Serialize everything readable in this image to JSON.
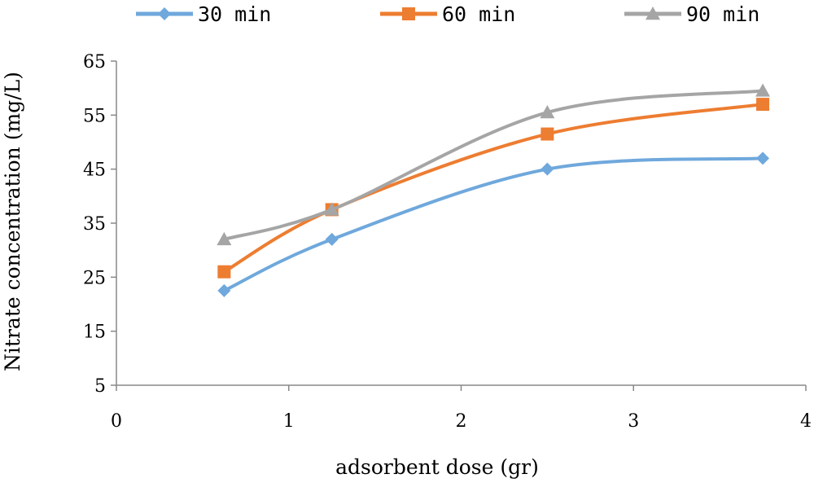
{
  "chart_data": {
    "type": "scatter",
    "title": "",
    "xlabel": "adsorbent dose (gr)",
    "ylabel": "Nitrate concentration (mg/L)",
    "xlim": [
      0,
      4
    ],
    "ylim": [
      5,
      65
    ],
    "x_ticks": [
      0,
      1,
      2,
      3,
      4
    ],
    "y_ticks": [
      5,
      15,
      25,
      35,
      45,
      55,
      65
    ],
    "grid": false,
    "legend_position": "top",
    "smoothed_lines": true,
    "series": [
      {
        "name": "30 min",
        "color": "#6FA8DC",
        "marker": "diamond",
        "points": [
          [
            0.625,
            22.5
          ],
          [
            1.25,
            32
          ],
          [
            2.5,
            45
          ],
          [
            3.75,
            47
          ]
        ]
      },
      {
        "name": "60 min",
        "color": "#ED7D31",
        "marker": "square",
        "points": [
          [
            0.625,
            26
          ],
          [
            1.25,
            37.5
          ],
          [
            2.5,
            51.5
          ],
          [
            3.75,
            57
          ]
        ]
      },
      {
        "name": "90 min",
        "color": "#A5A5A5",
        "marker": "triangle",
        "points": [
          [
            0.625,
            32
          ],
          [
            1.25,
            37.5
          ],
          [
            2.5,
            55.5
          ],
          [
            3.75,
            59.5
          ]
        ]
      }
    ]
  }
}
